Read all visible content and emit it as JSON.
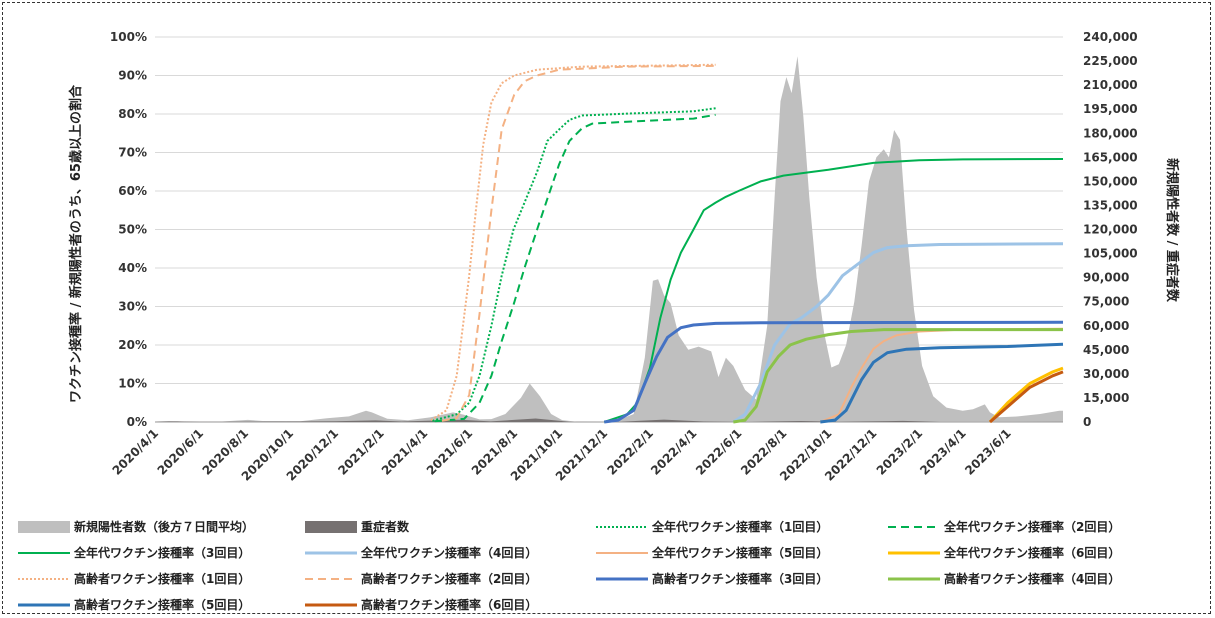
{
  "chart_data": {
    "type": "line",
    "title": "",
    "y_left_label": "ワクチン接種率 / 新規陽性者のうち、65歳以上の割合",
    "y_right_label": "新規陽性者数 / 重症者数",
    "y_left_ticks": [
      "0%",
      "10%",
      "20%",
      "30%",
      "40%",
      "50%",
      "60%",
      "70%",
      "80%",
      "90%",
      "100%"
    ],
    "y_right_ticks": [
      "0",
      "15,000",
      "30,000",
      "45,000",
      "60,000",
      "75,000",
      "90,000",
      "105,000",
      "120,000",
      "135,000",
      "150,000",
      "165,000",
      "180,000",
      "195,000",
      "210,000",
      "225,000",
      "240,000"
    ],
    "y_left_range": [
      0,
      100
    ],
    "y_right_range": [
      0,
      240000
    ],
    "x_range": [
      "2020-04-01",
      "2023-08-15"
    ],
    "x_ticks": [
      "2020/4/1",
      "2020/6/1",
      "2020/8/1",
      "2020/10/1",
      "2020/12/1",
      "2021/2/1",
      "2021/4/1",
      "2021/6/1",
      "2021/8/1",
      "2021/10/1",
      "2021/12/1",
      "2022/2/1",
      "2022/4/1",
      "2022/6/1",
      "2022/8/1",
      "2022/10/1",
      "2022/12/1",
      "2023/2/1",
      "2023/4/1",
      "2023/6/1"
    ],
    "area_series": [
      {
        "name": "新規陽性者数（後方７日間平均）",
        "color": "#bfbfbf",
        "axis": "right",
        "points": [
          [
            "2020-04-01",
            300
          ],
          [
            "2020-04-20",
            600
          ],
          [
            "2020-05-15",
            100
          ],
          [
            "2020-07-01",
            300
          ],
          [
            "2020-08-05",
            1300
          ],
          [
            "2020-08-25",
            600
          ],
          [
            "2020-10-15",
            500
          ],
          [
            "2020-11-20",
            2300
          ],
          [
            "2020-12-20",
            3500
          ],
          [
            "2021-01-12",
            7000
          ],
          [
            "2021-01-20",
            6000
          ],
          [
            "2021-02-10",
            2000
          ],
          [
            "2021-03-10",
            1100
          ],
          [
            "2021-04-10",
            3000
          ],
          [
            "2021-05-10",
            6000
          ],
          [
            "2021-05-25",
            4500
          ],
          [
            "2021-06-15",
            1600
          ],
          [
            "2021-07-01",
            1800
          ],
          [
            "2021-07-20",
            5000
          ],
          [
            "2021-08-10",
            15000
          ],
          [
            "2021-08-22",
            24000
          ],
          [
            "2021-09-05",
            16000
          ],
          [
            "2021-09-20",
            5000
          ],
          [
            "2021-10-05",
            1200
          ],
          [
            "2021-10-25",
            200
          ],
          [
            "2021-12-15",
            150
          ],
          [
            "2022-01-10",
            5000
          ],
          [
            "2022-01-25",
            40000
          ],
          [
            "2022-02-05",
            88000
          ],
          [
            "2022-02-12",
            89000
          ],
          [
            "2022-02-20",
            79000
          ],
          [
            "2022-03-01",
            74000
          ],
          [
            "2022-03-12",
            54000
          ],
          [
            "2022-03-25",
            45000
          ],
          [
            "2022-04-08",
            47000
          ],
          [
            "2022-04-25",
            44000
          ],
          [
            "2022-05-05",
            28000
          ],
          [
            "2022-05-15",
            40000
          ],
          [
            "2022-05-25",
            35000
          ],
          [
            "2022-06-10",
            20000
          ],
          [
            "2022-06-25",
            14000
          ],
          [
            "2022-07-10",
            60000
          ],
          [
            "2022-07-20",
            140000
          ],
          [
            "2022-07-28",
            200000
          ],
          [
            "2022-08-05",
            215000
          ],
          [
            "2022-08-12",
            205000
          ],
          [
            "2022-08-20",
            228000
          ],
          [
            "2022-08-28",
            190000
          ],
          [
            "2022-09-05",
            140000
          ],
          [
            "2022-09-15",
            90000
          ],
          [
            "2022-09-25",
            56000
          ],
          [
            "2022-10-05",
            34000
          ],
          [
            "2022-10-15",
            36000
          ],
          [
            "2022-10-25",
            48000
          ],
          [
            "2022-11-05",
            75000
          ],
          [
            "2022-11-15",
            110000
          ],
          [
            "2022-11-25",
            150000
          ],
          [
            "2022-12-05",
            165000
          ],
          [
            "2022-12-15",
            170000
          ],
          [
            "2022-12-22",
            165000
          ],
          [
            "2022-12-29",
            182000
          ],
          [
            "2023-01-06",
            176000
          ],
          [
            "2023-01-15",
            120000
          ],
          [
            "2023-01-25",
            70000
          ],
          [
            "2023-02-05",
            35000
          ],
          [
            "2023-02-20",
            16000
          ],
          [
            "2023-03-10",
            9000
          ],
          [
            "2023-04-01",
            7000
          ],
          [
            "2023-04-15",
            8000
          ],
          [
            "2023-05-01",
            11000
          ],
          [
            "2023-05-08",
            6000
          ],
          [
            "2023-05-20",
            3000
          ],
          [
            "2023-06-15",
            3500
          ],
          [
            "2023-07-15",
            5000
          ],
          [
            "2023-08-10",
            7000
          ],
          [
            "2023-08-15",
            7000
          ]
        ]
      },
      {
        "name": "重症者数",
        "color": "#767171",
        "axis": "right",
        "points": [
          [
            "2020-04-01",
            100
          ],
          [
            "2020-05-01",
            350
          ],
          [
            "2020-06-01",
            100
          ],
          [
            "2020-08-20",
            250
          ],
          [
            "2020-12-01",
            500
          ],
          [
            "2021-01-25",
            1000
          ],
          [
            "2021-03-01",
            300
          ],
          [
            "2021-05-20",
            1400
          ],
          [
            "2021-06-30",
            400
          ],
          [
            "2021-08-30",
            2200
          ],
          [
            "2021-10-15",
            200
          ],
          [
            "2021-12-20",
            60
          ],
          [
            "2022-02-20",
            1500
          ],
          [
            "2022-04-15",
            300
          ],
          [
            "2022-06-15",
            60
          ],
          [
            "2022-08-25",
            600
          ],
          [
            "2022-10-15",
            150
          ],
          [
            "2023-01-10",
            700
          ],
          [
            "2023-03-01",
            60
          ],
          [
            "2023-08-15",
            150
          ]
        ]
      }
    ],
    "line_series": [
      {
        "name": "全年代ワクチン接種率（1回目）",
        "color": "#00b050",
        "style": "dotted",
        "width": 2,
        "points": [
          [
            "2021-04-12",
            0.3
          ],
          [
            "2021-05-15",
            2
          ],
          [
            "2021-06-01",
            5
          ],
          [
            "2021-06-15",
            12
          ],
          [
            "2021-07-01",
            25
          ],
          [
            "2021-07-15",
            38
          ],
          [
            "2021-07-31",
            50
          ],
          [
            "2021-08-15",
            57
          ],
          [
            "2021-09-01",
            65
          ],
          [
            "2021-09-15",
            73
          ],
          [
            "2021-10-01",
            76
          ],
          [
            "2021-10-15",
            78.5
          ],
          [
            "2021-11-01",
            79.6
          ],
          [
            "2022-01-01",
            80.1
          ],
          [
            "2022-04-01",
            80.7
          ],
          [
            "2022-05-01",
            81.5
          ]
        ]
      },
      {
        "name": "全年代ワクチン接種率（2回目）",
        "color": "#00b050",
        "style": "dashed",
        "width": 2,
        "points": [
          [
            "2021-04-15",
            0.2
          ],
          [
            "2021-05-25",
            0.8
          ],
          [
            "2021-06-15",
            5
          ],
          [
            "2021-07-01",
            12
          ],
          [
            "2021-07-15",
            21
          ],
          [
            "2021-08-01",
            31
          ],
          [
            "2021-08-15",
            40
          ],
          [
            "2021-09-01",
            50
          ],
          [
            "2021-09-15",
            58
          ],
          [
            "2021-10-01",
            67
          ],
          [
            "2021-10-15",
            73
          ],
          [
            "2021-11-01",
            76.3
          ],
          [
            "2021-11-15",
            77.5
          ],
          [
            "2022-01-01",
            78
          ],
          [
            "2022-04-01",
            78.8
          ],
          [
            "2022-05-01",
            79.8
          ]
        ]
      },
      {
        "name": "全年代ワクチン接種率（3回目）",
        "color": "#00b050",
        "style": "solid",
        "width": 2,
        "points": [
          [
            "2021-12-01",
            0
          ],
          [
            "2022-01-01",
            2
          ],
          [
            "2022-01-15",
            5
          ],
          [
            "2022-02-01",
            14
          ],
          [
            "2022-02-15",
            27
          ],
          [
            "2022-03-01",
            37
          ],
          [
            "2022-03-15",
            44
          ],
          [
            "2022-04-01",
            50
          ],
          [
            "2022-04-15",
            55
          ],
          [
            "2022-05-01",
            57
          ],
          [
            "2022-05-15",
            58.5
          ],
          [
            "2022-06-01",
            60
          ],
          [
            "2022-07-01",
            62.5
          ],
          [
            "2022-08-01",
            64
          ],
          [
            "2022-10-01",
            65.5
          ],
          [
            "2022-12-01",
            67.3
          ],
          [
            "2023-02-01",
            68
          ],
          [
            "2023-04-01",
            68.2
          ],
          [
            "2023-08-15",
            68.3
          ]
        ]
      },
      {
        "name": "全年代ワクチン接種率（4回目）",
        "color": "#9dc3e6",
        "style": "solid",
        "width": 3,
        "points": [
          [
            "2022-05-25",
            0
          ],
          [
            "2022-06-10",
            2
          ],
          [
            "2022-07-01",
            10
          ],
          [
            "2022-07-20",
            20
          ],
          [
            "2022-08-10",
            25.5
          ],
          [
            "2022-08-25",
            27
          ],
          [
            "2022-09-15",
            30
          ],
          [
            "2022-10-01",
            33
          ],
          [
            "2022-10-20",
            38
          ],
          [
            "2022-11-10",
            41
          ],
          [
            "2022-12-01",
            44
          ],
          [
            "2022-12-20",
            45.3
          ],
          [
            "2023-01-15",
            45.8
          ],
          [
            "2023-03-01",
            46.1
          ],
          [
            "2023-08-15",
            46.3
          ]
        ]
      },
      {
        "name": "全年代ワクチン接種率（5回目）",
        "color": "#f4b183",
        "style": "solid",
        "width": 2,
        "points": [
          [
            "2022-09-20",
            0
          ],
          [
            "2022-10-15",
            2
          ],
          [
            "2022-11-01",
            9
          ],
          [
            "2022-11-15",
            14
          ],
          [
            "2022-12-01",
            19
          ],
          [
            "2022-12-15",
            21
          ],
          [
            "2023-01-01",
            22.5
          ],
          [
            "2023-02-01",
            23.5
          ],
          [
            "2023-04-01",
            24
          ],
          [
            "2023-08-15",
            24.2
          ]
        ]
      },
      {
        "name": "全年代ワクチン接種率（6回目）",
        "color": "#ffc000",
        "style": "solid",
        "width": 3,
        "points": [
          [
            "2023-05-08",
            0
          ],
          [
            "2023-06-01",
            5
          ],
          [
            "2023-07-01",
            10
          ],
          [
            "2023-08-01",
            13
          ],
          [
            "2023-08-15",
            14
          ]
        ]
      },
      {
        "name": "高齢者ワクチン接種率（1回目）",
        "color": "#f4b183",
        "style": "dotted",
        "width": 2,
        "points": [
          [
            "2021-04-10",
            0.5
          ],
          [
            "2021-05-01",
            3
          ],
          [
            "2021-05-15",
            12
          ],
          [
            "2021-06-01",
            38
          ],
          [
            "2021-06-10",
            55
          ],
          [
            "2021-06-20",
            72
          ],
          [
            "2021-07-01",
            83
          ],
          [
            "2021-07-15",
            88
          ],
          [
            "2021-08-01",
            90
          ],
          [
            "2021-09-01",
            91.5
          ],
          [
            "2021-11-01",
            92.3
          ],
          [
            "2022-04-01",
            92.7
          ],
          [
            "2022-05-01",
            92.8
          ]
        ]
      },
      {
        "name": "高齢者ワクチン接種率（2回目）",
        "color": "#f4b183",
        "style": "dashed",
        "width": 2,
        "points": [
          [
            "2021-04-25",
            0.3
          ],
          [
            "2021-05-15",
            1
          ],
          [
            "2021-06-01",
            7
          ],
          [
            "2021-06-15",
            28
          ],
          [
            "2021-07-01",
            55
          ],
          [
            "2021-07-15",
            76
          ],
          [
            "2021-08-01",
            85
          ],
          [
            "2021-08-15",
            88.5
          ],
          [
            "2021-09-01",
            90
          ],
          [
            "2021-10-01",
            91.5
          ],
          [
            "2022-01-01",
            92.3
          ],
          [
            "2022-05-01",
            92.5
          ]
        ]
      },
      {
        "name": "高齢者ワクチン接種率（3回目）",
        "color": "#4472c4",
        "style": "solid",
        "width": 3,
        "points": [
          [
            "2021-12-01",
            0
          ],
          [
            "2021-12-20",
            0.5
          ],
          [
            "2022-01-10",
            3
          ],
          [
            "2022-01-25",
            10
          ],
          [
            "2022-02-10",
            17
          ],
          [
            "2022-02-25",
            22
          ],
          [
            "2022-03-15",
            24.5
          ],
          [
            "2022-04-01",
            25.2
          ],
          [
            "2022-05-01",
            25.6
          ],
          [
            "2022-07-01",
            25.8
          ],
          [
            "2023-08-15",
            25.9
          ]
        ]
      },
      {
        "name": "高齢者ワクチン接種率（4回目）",
        "color": "#8bc34a",
        "style": "solid",
        "width": 3,
        "points": [
          [
            "2022-05-25",
            0
          ],
          [
            "2022-06-10",
            0.5
          ],
          [
            "2022-06-25",
            4
          ],
          [
            "2022-07-10",
            13
          ],
          [
            "2022-07-25",
            17
          ],
          [
            "2022-08-10",
            20
          ],
          [
            "2022-09-01",
            21.5
          ],
          [
            "2022-10-01",
            22.7
          ],
          [
            "2022-11-01",
            23.5
          ],
          [
            "2022-12-15",
            24
          ],
          [
            "2023-08-15",
            24
          ]
        ]
      },
      {
        "name": "高齢者ワクチン接種率（5回目）",
        "color": "#2e75b6",
        "style": "solid",
        "width": 3,
        "points": [
          [
            "2022-09-20",
            0
          ],
          [
            "2022-10-10",
            0.5
          ],
          [
            "2022-10-25",
            3
          ],
          [
            "2022-11-15",
            11
          ],
          [
            "2022-12-01",
            15.5
          ],
          [
            "2022-12-20",
            18
          ],
          [
            "2023-01-15",
            18.9
          ],
          [
            "2023-03-01",
            19.3
          ],
          [
            "2023-06-01",
            19.6
          ],
          [
            "2023-08-15",
            20.2
          ]
        ]
      },
      {
        "name": "高齢者ワクチン接種率（6回目）",
        "color": "#c55a11",
        "style": "solid",
        "width": 3,
        "points": [
          [
            "2023-05-08",
            0
          ],
          [
            "2023-06-01",
            4
          ],
          [
            "2023-07-01",
            9
          ],
          [
            "2023-08-01",
            12
          ],
          [
            "2023-08-15",
            13
          ]
        ]
      }
    ],
    "legend_position": "bottom"
  }
}
